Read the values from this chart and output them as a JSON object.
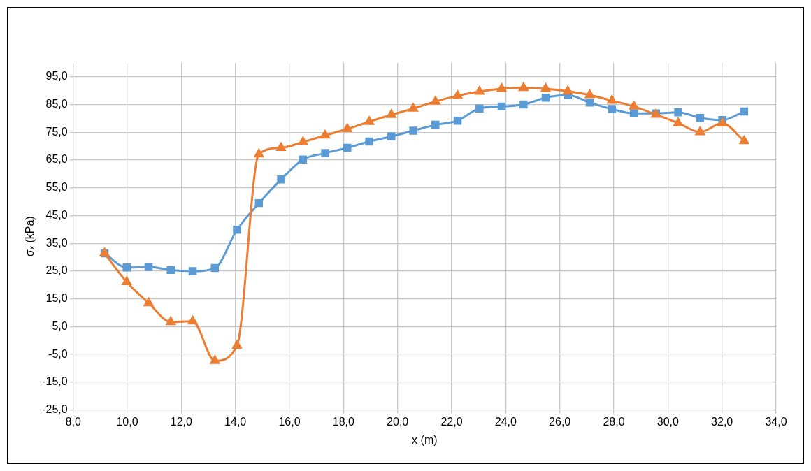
{
  "chart_data": {
    "type": "line",
    "xlabel": "x (m)",
    "ylabel": "σₓ (kPa)",
    "xlim": [
      8,
      34
    ],
    "xticks": [
      {
        "value": 8,
        "label": "8,0"
      },
      {
        "value": 10,
        "label": "10,0"
      },
      {
        "value": 12,
        "label": "12,0"
      },
      {
        "value": 14,
        "label": "14,0"
      },
      {
        "value": 16,
        "label": "16,0"
      },
      {
        "value": 18,
        "label": "18,0"
      },
      {
        "value": 20,
        "label": "20,0"
      },
      {
        "value": 22,
        "label": "22,0"
      },
      {
        "value": 24,
        "label": "24,0"
      },
      {
        "value": 26,
        "label": "26,0"
      },
      {
        "value": 28,
        "label": "28,0"
      },
      {
        "value": 30,
        "label": "30,0"
      },
      {
        "value": 32,
        "label": "32,0"
      },
      {
        "value": 34,
        "label": "34,0"
      }
    ],
    "ylim": [
      -25,
      100
    ],
    "yticks": [
      {
        "value": -25,
        "label": "-25,0"
      },
      {
        "value": -15,
        "label": "-15,0"
      },
      {
        "value": -5,
        "label": "-5,0"
      },
      {
        "value": 5,
        "label": "5,0"
      },
      {
        "value": 15,
        "label": "15,0"
      },
      {
        "value": 25,
        "label": "25,0"
      },
      {
        "value": 35,
        "label": "35,0"
      },
      {
        "value": 45,
        "label": "45,0"
      },
      {
        "value": 55,
        "label": "55,0"
      },
      {
        "value": 65,
        "label": "65,0"
      },
      {
        "value": 75,
        "label": "75,0"
      },
      {
        "value": 85,
        "label": "85,0"
      },
      {
        "value": 95,
        "label": "95,0"
      }
    ],
    "x": [
      9.16,
      9.98,
      10.79,
      11.61,
      12.42,
      13.24,
      14.06,
      14.87,
      15.69,
      16.5,
      17.32,
      18.14,
      18.95,
      19.77,
      20.58,
      21.4,
      22.22,
      23.03,
      23.85,
      24.66,
      25.48,
      26.3,
      27.11,
      27.93,
      28.74,
      29.56,
      30.38,
      31.19,
      32.01,
      32.82
    ],
    "series": [
      {
        "color": "#5b9bd5",
        "marker": "square",
        "values": [
          31.4,
          26.3,
          26.5,
          25.4,
          25.0,
          26.1,
          39.9,
          49.5,
          58.0,
          65.2,
          67.5,
          69.4,
          71.7,
          73.5,
          75.6,
          77.7,
          79.2,
          83.6,
          84.3,
          85.0,
          87.5,
          88.4,
          85.7,
          83.4,
          81.8,
          81.8,
          82.2,
          80.2,
          79.4,
          82.5
        ]
      },
      {
        "color": "#ed7d31",
        "marker": "triangle",
        "values": [
          31.4,
          21.1,
          13.5,
          6.7,
          6.9,
          -7.3,
          -1.8,
          67.1,
          69.4,
          71.5,
          73.9,
          76.2,
          78.8,
          81.3,
          83.6,
          86.1,
          88.2,
          89.7,
          90.7,
          91.0,
          90.7,
          89.8,
          88.4,
          86.4,
          84.3,
          81.4,
          78.3,
          75.1,
          78.2,
          71.9
        ]
      }
    ],
    "grid": true,
    "line_style": "solid"
  }
}
